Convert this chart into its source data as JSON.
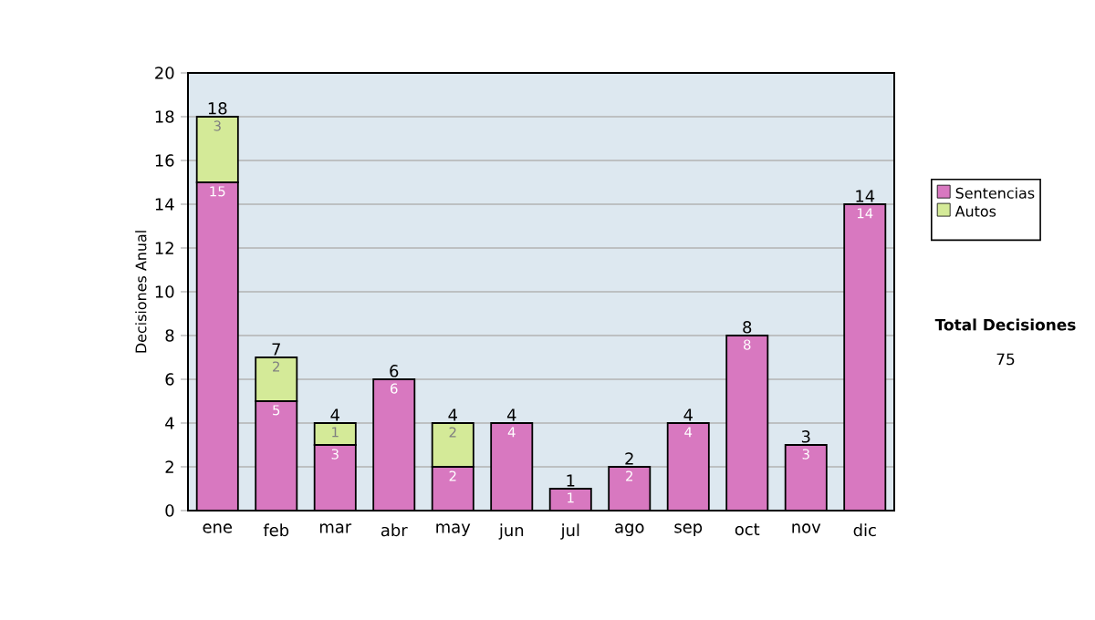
{
  "chart_data": {
    "type": "bar",
    "stacked": true,
    "ylabel": "Decisiones Anual",
    "categories": [
      "ene",
      "feb",
      "mar",
      "abr",
      "may",
      "jun",
      "jul",
      "ago",
      "sep",
      "oct",
      "nov",
      "dic"
    ],
    "series": [
      {
        "name": "Sentencias",
        "color": "#d878c0",
        "values": [
          15,
          5,
          3,
          6,
          2,
          4,
          1,
          2,
          4,
          8,
          3,
          14
        ],
        "value_labels": [
          "15",
          "5",
          "3",
          "6",
          "2",
          "4",
          "1",
          "2",
          "4",
          "8",
          "3",
          "14"
        ]
      },
      {
        "name": "Autos",
        "color": "#d4ea98",
        "values": [
          3,
          2,
          1,
          null,
          2,
          null,
          null,
          null,
          null,
          null,
          null,
          null
        ],
        "value_labels": [
          "3",
          "2",
          "1",
          null,
          "2",
          null,
          null,
          null,
          null,
          null,
          null,
          null
        ]
      }
    ],
    "totals": [
      "18",
      "7",
      "4",
      "6",
      "4",
      "4",
      "1",
      "2",
      "4",
      "8",
      "3",
      "14"
    ],
    "ylim": [
      0,
      20
    ],
    "yticks": [
      0,
      2,
      4,
      6,
      8,
      10,
      12,
      14,
      16,
      18,
      20
    ],
    "grid": "y",
    "legend": "right",
    "annotations": [
      "Total Decisiones",
      "75"
    ]
  }
}
